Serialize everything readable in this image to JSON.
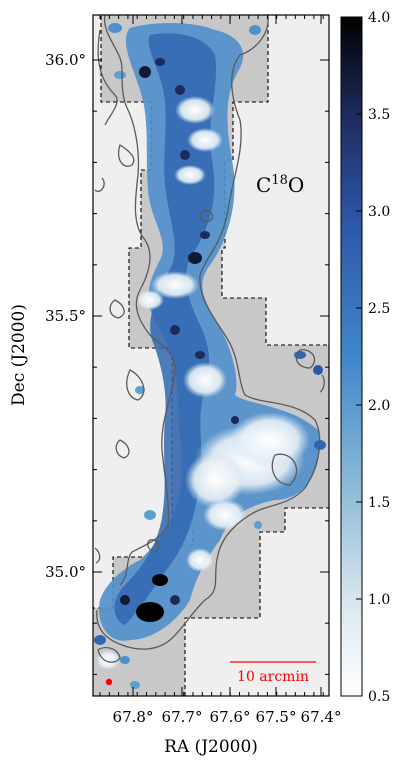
{
  "map": {
    "xlabel": "RA (J2000)",
    "ylabel": "Dec (J2000)",
    "ra_ticks": [
      "67.8°",
      "67.7°",
      "67.6°",
      "67.5°",
      "67.4°"
    ],
    "dec_ticks": [
      "36.0°",
      "35.5°",
      "35.0°"
    ],
    "species_prefix": "C",
    "species_mass": "18",
    "species_suffix": "O",
    "scalebar_label": "10 arcmin",
    "colors": {
      "background": "#efefef",
      "coverage": "#c8c8c8",
      "contour": "#5a5a5a",
      "scalebar": "#ff0000",
      "beam": "#ff0000"
    }
  },
  "colorbar": {
    "ticks": [
      "4.0",
      "3.5",
      "3.0",
      "2.5",
      "2.0",
      "1.5",
      "1.0",
      "0.5"
    ],
    "range": [
      0.5,
      4.0
    ],
    "colormap": [
      "#ffffff",
      "#b9d2e2",
      "#5aa0d0",
      "#2f6fb8",
      "#233a80",
      "#000000"
    ]
  }
}
